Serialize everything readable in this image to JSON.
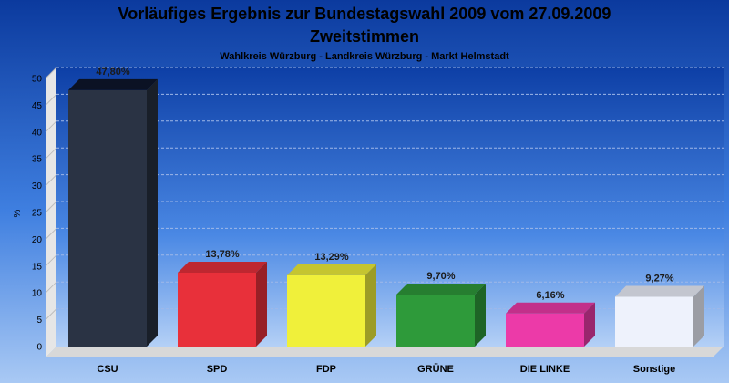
{
  "chart_data": {
    "type": "bar",
    "title": "Vorläufiges Ergebnis zur Bundestagswahl 2009 vom 27.09.2009",
    "title_line2": "Zweitstimmen",
    "subtitle": "Wahlkreis Würzburg - Landkreis Würzburg - Markt Helmstadt",
    "ylabel": "%",
    "xlabel": "",
    "ylim": [
      0,
      50
    ],
    "yticks": [
      "0",
      "5",
      "10",
      "15",
      "20",
      "25",
      "30",
      "35",
      "40",
      "45",
      "50"
    ],
    "grid": true,
    "categories": [
      "CSU",
      "SPD",
      "FDP",
      "GRÜNE",
      "DIE LINKE",
      "Sonstige"
    ],
    "values": [
      47.8,
      13.78,
      13.29,
      9.7,
      6.16,
      9.27
    ],
    "value_labels": [
      "47,80%",
      "13,78%",
      "13,29%",
      "9,70%",
      "6,16%",
      "9,27%"
    ],
    "colors": [
      "#1a2233",
      "#e8303a",
      "#f0f03a",
      "#2e9a3a",
      "#ec3aa8",
      "#eef2fc"
    ]
  }
}
